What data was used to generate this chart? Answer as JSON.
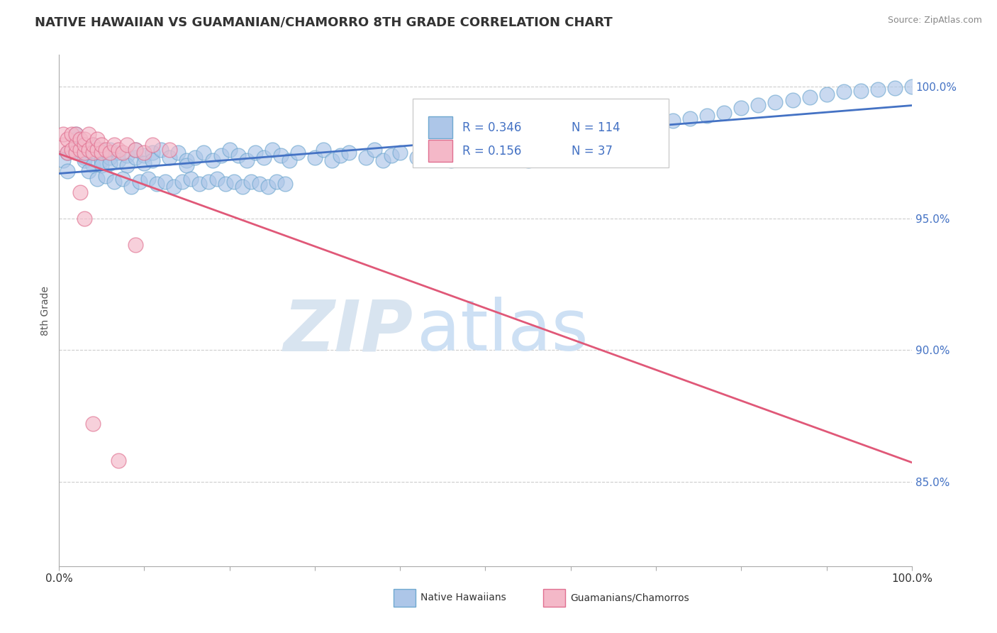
{
  "title": "NATIVE HAWAIIAN VS GUAMANIAN/CHAMORRO 8TH GRADE CORRELATION CHART",
  "source_text": "Source: ZipAtlas.com",
  "ylabel": "8th Grade",
  "xlim": [
    0.0,
    1.0
  ],
  "ylim": [
    0.818,
    1.012
  ],
  "yticks": [
    0.85,
    0.9,
    0.95,
    1.0
  ],
  "ytick_labels": [
    "85.0%",
    "90.0%",
    "95.0%",
    "100.0%"
  ],
  "blue_R": 0.346,
  "blue_N": 114,
  "pink_R": 0.156,
  "pink_N": 37,
  "blue_color": "#adc6e8",
  "blue_edge": "#6fa8d0",
  "blue_line_color": "#4472c4",
  "pink_color": "#f4b8c8",
  "pink_edge": "#e07090",
  "pink_line_color": "#e05878",
  "legend_blue_label": "Native Hawaiians",
  "legend_pink_label": "Guamanians/Chamorros",
  "watermark_zip": "ZIP",
  "watermark_atlas": "atlas",
  "watermark_color": "#d8e4f0",
  "background_color": "#ffffff",
  "grid_color": "#cccccc",
  "title_color": "#333333",
  "blue_marker_size": 15,
  "pink_marker_size": 15,
  "blue_x": [
    0.005,
    0.01,
    0.01,
    0.02,
    0.02,
    0.02,
    0.025,
    0.03,
    0.03,
    0.03,
    0.04,
    0.04,
    0.04,
    0.05,
    0.05,
    0.05,
    0.05,
    0.06,
    0.06,
    0.06,
    0.07,
    0.07,
    0.08,
    0.08,
    0.09,
    0.09,
    0.1,
    0.1,
    0.11,
    0.11,
    0.12,
    0.13,
    0.14,
    0.15,
    0.15,
    0.16,
    0.17,
    0.18,
    0.19,
    0.2,
    0.21,
    0.22,
    0.23,
    0.24,
    0.25,
    0.26,
    0.27,
    0.28,
    0.3,
    0.31,
    0.32,
    0.33,
    0.34,
    0.36,
    0.37,
    0.38,
    0.39,
    0.4,
    0.42,
    0.43,
    0.45,
    0.46,
    0.48,
    0.5,
    0.51,
    0.53,
    0.55,
    0.57,
    0.58,
    0.6,
    0.62,
    0.65,
    0.67,
    0.69,
    0.7,
    0.72,
    0.74,
    0.76,
    0.78,
    0.8,
    0.82,
    0.84,
    0.86,
    0.88,
    0.9,
    0.92,
    0.94,
    0.96,
    0.98,
    1.0,
    0.035,
    0.045,
    0.055,
    0.065,
    0.075,
    0.085,
    0.095,
    0.105,
    0.115,
    0.125,
    0.135,
    0.145,
    0.155,
    0.165,
    0.175,
    0.185,
    0.195,
    0.205,
    0.215,
    0.225,
    0.235,
    0.245,
    0.255,
    0.265
  ],
  "blue_y": [
    0.972,
    0.975,
    0.968,
    0.98,
    0.976,
    0.982,
    0.975,
    0.973,
    0.976,
    0.972,
    0.978,
    0.975,
    0.97,
    0.975,
    0.972,
    0.976,
    0.97,
    0.973,
    0.976,
    0.971,
    0.975,
    0.972,
    0.974,
    0.97,
    0.973,
    0.976,
    0.974,
    0.971,
    0.975,
    0.972,
    0.976,
    0.973,
    0.975,
    0.972,
    0.97,
    0.973,
    0.975,
    0.972,
    0.974,
    0.976,
    0.974,
    0.972,
    0.975,
    0.973,
    0.976,
    0.974,
    0.972,
    0.975,
    0.973,
    0.976,
    0.972,
    0.974,
    0.975,
    0.973,
    0.976,
    0.972,
    0.974,
    0.975,
    0.973,
    0.976,
    0.974,
    0.972,
    0.975,
    0.973,
    0.976,
    0.974,
    0.972,
    0.975,
    0.973,
    0.976,
    0.978,
    0.98,
    0.982,
    0.984,
    0.986,
    0.987,
    0.988,
    0.989,
    0.99,
    0.992,
    0.993,
    0.994,
    0.995,
    0.996,
    0.997,
    0.998,
    0.9985,
    0.999,
    0.9995,
    1.0,
    0.968,
    0.965,
    0.966,
    0.964,
    0.965,
    0.962,
    0.964,
    0.965,
    0.963,
    0.964,
    0.962,
    0.964,
    0.965,
    0.963,
    0.964,
    0.965,
    0.963,
    0.964,
    0.962,
    0.964,
    0.963,
    0.962,
    0.964,
    0.963
  ],
  "pink_x": [
    0.005,
    0.005,
    0.01,
    0.01,
    0.015,
    0.015,
    0.02,
    0.02,
    0.02,
    0.025,
    0.025,
    0.03,
    0.03,
    0.03,
    0.035,
    0.035,
    0.04,
    0.04,
    0.045,
    0.045,
    0.05,
    0.05,
    0.055,
    0.06,
    0.065,
    0.07,
    0.075,
    0.08,
    0.09,
    0.1,
    0.11,
    0.13,
    0.04,
    0.07,
    0.09,
    0.025,
    0.03
  ],
  "pink_y": [
    0.978,
    0.982,
    0.975,
    0.98,
    0.976,
    0.982,
    0.975,
    0.978,
    0.982,
    0.976,
    0.98,
    0.975,
    0.978,
    0.98,
    0.976,
    0.982,
    0.975,
    0.978,
    0.976,
    0.98,
    0.975,
    0.978,
    0.976,
    0.975,
    0.978,
    0.976,
    0.975,
    0.978,
    0.976,
    0.975,
    0.978,
    0.976,
    0.872,
    0.858,
    0.94,
    0.96,
    0.95
  ]
}
